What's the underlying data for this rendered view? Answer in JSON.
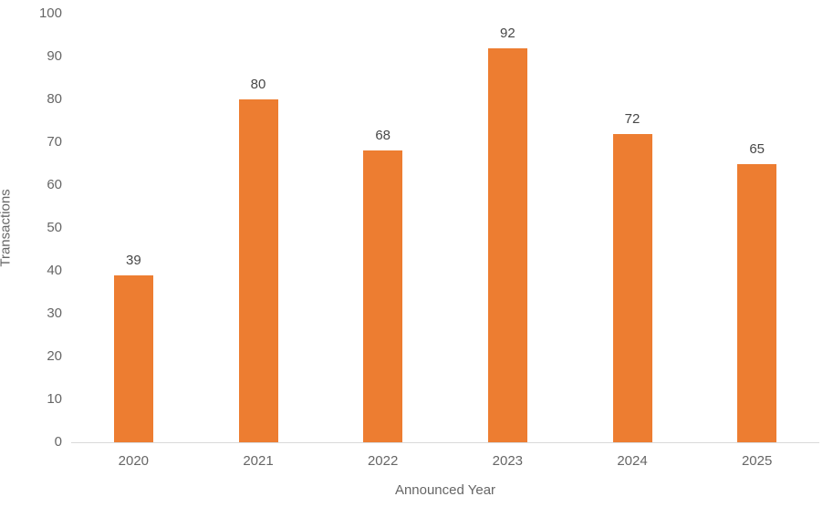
{
  "chart_data": {
    "type": "bar",
    "title": "",
    "categories": [
      "2020",
      "2021",
      "2022",
      "2023",
      "2024",
      "2025"
    ],
    "values": [
      39,
      80,
      68,
      92,
      72,
      65
    ],
    "xlabel": "Announced Year",
    "ylabel": "Transactions",
    "ylim": [
      0,
      100
    ],
    "ytick_step": 10,
    "grid": false,
    "legend": "none",
    "value_labels": true
  },
  "colors": {
    "bar": "#ED7D31",
    "axis_line": "#d9d9d9",
    "tick_text": "#666666",
    "value_label_text": "#474747",
    "background": "#ffffff"
  }
}
